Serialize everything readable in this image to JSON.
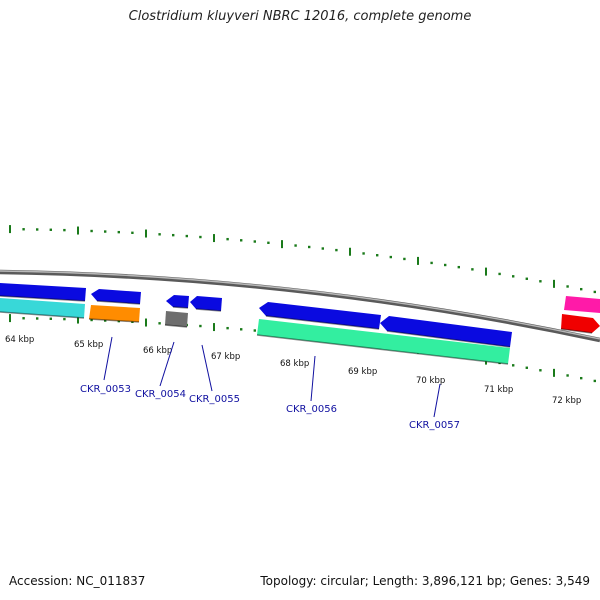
{
  "title": "Clostridium kluyveri NBRC 12016, complete genome",
  "footer": {
    "accession": "Accession: NC_011837",
    "summary": "Topology: circular; Length: 3,896,121 bp; Genes: 3,549"
  },
  "ruler": {
    "labels": [
      "64 kbp",
      "65 kbp",
      "66 kbp",
      "67 kbp",
      "68 kbp",
      "69 kbp",
      "70 kbp",
      "71 kbp",
      "72 kbp"
    ]
  },
  "gene_labels": [
    "CKR_0053",
    "CKR_0054",
    "CKR_0055",
    "CKR_0056",
    "CKR_0057"
  ],
  "colors": {
    "backbone": "#8a8a8a",
    "tick": "#1a7a1a",
    "blue": "#0a0ae0",
    "cyan": "#38d8d8",
    "orange": "#ff8c00",
    "gray": "#6e6e6e",
    "mint": "#33eea0",
    "pink": "#ff1aa8",
    "red": "#f00000",
    "link": "#1010a0"
  }
}
